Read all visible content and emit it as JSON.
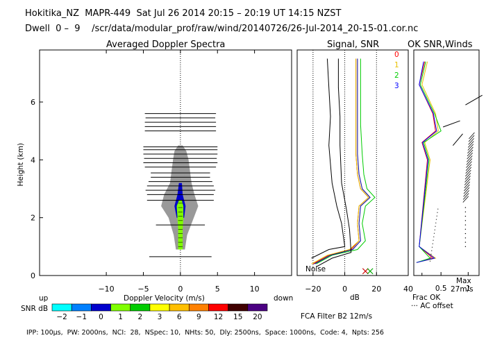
{
  "header": {
    "line1": "Hokitika_NZ  MAPR-449  Sat Jul 26 2014 20:15 – 20:19 UT 14:15 NZST",
    "line2": "Dwell  0 –  9    /scr/data/modular_prof/raw/wind/20140726/26-Jul-2014_20-15-01.cor.nc"
  },
  "footer": {
    "params": "IPP: 100μs,  PW: 2000ns,  NCI:  28,  NSpec: 10,  NHts: 50,  Dly: 2500ns,  Space: 1000ns,  Code: 4,  Npts: 256",
    "fca": "FCA Filter B2 12m/s"
  },
  "legend": {
    "up": "up",
    "down": "down",
    "snr_label": "SNR dB",
    "levels": [
      "−2",
      "−1",
      "0",
      "1",
      "2",
      "3",
      "6",
      "9",
      "12",
      "15",
      "20"
    ],
    "colors": [
      "#00ffff",
      "#0080ff",
      "#0000cc",
      "#7fff00",
      "#00cc00",
      "#ffff00",
      "#ffbf00",
      "#ff8000",
      "#ff0000",
      "#400000",
      "#4b0082"
    ]
  },
  "right_panel": {
    "title": "OK SNR,Winds",
    "beam_labels": [
      "0",
      "1",
      "2",
      "3"
    ],
    "beam_colors": [
      "#ff0000",
      "#e8c000",
      "#00cc00",
      "#0000ff"
    ],
    "xticks": [
      "0.5",
      "1"
    ],
    "max_label": "Max",
    "max_value": "27m/s",
    "frac_ok": "Frac OK",
    "ac_offset": "··· AC offset"
  },
  "chart_data": [
    {
      "type": "heatmap",
      "title": "Averaged Doppler Spectra",
      "xlabel": "Doppler Velocity (m/s)",
      "ylabel": "Height (km)",
      "xlim": [
        -19,
        15
      ],
      "ylim": [
        0,
        7.8
      ],
      "xticks": [
        -10,
        -5,
        0,
        5,
        10
      ],
      "yticks": [
        0,
        2,
        4,
        6
      ],
      "contours": [
        {
          "level": "-2",
          "profile": [
            [
              0.9,
              -0.6,
              0.6
            ],
            [
              1.4,
              -0.9,
              0.9
            ],
            [
              2.0,
              -1.6,
              1.8
            ],
            [
              2.4,
              -2.6,
              2.4
            ],
            [
              2.8,
              -2.2,
              1.9
            ],
            [
              3.2,
              -1.4,
              1.5
            ],
            [
              3.6,
              -1.2,
              1.3
            ],
            [
              4.0,
              -1.0,
              1.1
            ],
            [
              4.3,
              -0.8,
              0.8
            ],
            [
              4.5,
              -0.3,
              0.3
            ]
          ]
        },
        {
          "level": "-1",
          "profile": [
            [
              1.2,
              -0.3,
              0.3
            ],
            [
              2.0,
              -0.9,
              1.0
            ],
            [
              2.4,
              -1.3,
              1.1
            ],
            [
              2.8,
              -0.9,
              0.6
            ],
            [
              3.2,
              -0.6,
              0.6
            ],
            [
              3.5,
              -0.5,
              0.5
            ],
            [
              3.8,
              -0.6,
              0.4
            ],
            [
              4.0,
              -0.2,
              0.2
            ]
          ]
        },
        {
          "level": "0",
          "profile": [
            [
              2.0,
              -0.5,
              0.5
            ],
            [
              2.4,
              -0.8,
              0.7
            ],
            [
              2.8,
              -0.4,
              0.3
            ],
            [
              3.2,
              -0.2,
              0.2
            ]
          ]
        },
        {
          "level": "1",
          "profile": [
            [
              0.9,
              -0.3,
              0.3
            ],
            [
              1.6,
              -0.3,
              0.3
            ],
            [
              2.0,
              -0.4,
              0.4
            ],
            [
              2.4,
              -0.5,
              0.4
            ],
            [
              2.6,
              -0.2,
              0.2
            ]
          ]
        }
      ],
      "bars": [
        {
          "h": 0.65,
          "half_width": 4.2
        },
        {
          "h": 1.75,
          "half_width": 3.3
        },
        {
          "h": 2.6,
          "half_width": 4.5
        },
        {
          "h": 2.8,
          "half_width": 4.5
        },
        {
          "h": 2.95,
          "half_width": 4.7
        },
        {
          "h": 3.1,
          "half_width": 4.5
        },
        {
          "h": 3.25,
          "half_width": 4.3
        },
        {
          "h": 3.4,
          "half_width": 4.0
        },
        {
          "h": 3.55,
          "half_width": 4.0
        },
        {
          "h": 3.75,
          "half_width": 4.8
        },
        {
          "h": 3.9,
          "half_width": 5.0
        },
        {
          "h": 4.05,
          "half_width": 4.9
        },
        {
          "h": 4.2,
          "half_width": 5.0
        },
        {
          "h": 4.35,
          "half_width": 5.0
        },
        {
          "h": 4.45,
          "half_width": 5.0
        },
        {
          "h": 5.0,
          "half_width": 4.8
        },
        {
          "h": 5.15,
          "half_width": 4.8
        },
        {
          "h": 5.3,
          "half_width": 4.8
        },
        {
          "h": 5.45,
          "half_width": 4.7
        },
        {
          "h": 5.6,
          "half_width": 4.8
        }
      ],
      "legend_top_left": "up",
      "legend_top_right": "down"
    },
    {
      "type": "line",
      "title": "Signal, SNR",
      "xlabel": "dB",
      "xlim": [
        -30,
        40
      ],
      "ylim": [
        0,
        7.8
      ],
      "xticks": [
        -20,
        0,
        20,
        40
      ],
      "annotation": "Noise",
      "series": [
        {
          "name": "beam 0",
          "color": "#cc0000",
          "points": [
            [
              -20,
              0.4
            ],
            [
              -10,
              0.7
            ],
            [
              4,
              0.9
            ],
            [
              9,
              1.2
            ],
            [
              8,
              1.8
            ],
            [
              9,
              2.4
            ],
            [
              15,
              2.7
            ],
            [
              10,
              3.0
            ],
            [
              8,
              3.5
            ],
            [
              7,
              4.2
            ],
            [
              7,
              5.2
            ],
            [
              7,
              6.2
            ],
            [
              7,
              7.5
            ]
          ]
        },
        {
          "name": "beam 1",
          "color": "#e8c000",
          "points": [
            [
              -21,
              0.4
            ],
            [
              -11,
              0.7
            ],
            [
              3,
              0.9
            ],
            [
              9,
              1.2
            ],
            [
              8,
              1.8
            ],
            [
              9,
              2.4
            ],
            [
              15,
              2.7
            ],
            [
              10,
              3.0
            ],
            [
              8,
              3.5
            ],
            [
              7,
              4.2
            ],
            [
              7,
              5.2
            ],
            [
              7,
              6.2
            ],
            [
              7,
              7.5
            ]
          ]
        },
        {
          "name": "beam 2",
          "color": "#00cc00",
          "points": [
            [
              -18,
              0.4
            ],
            [
              -8,
              0.7
            ],
            [
              8,
              0.9
            ],
            [
              13,
              1.2
            ],
            [
              11,
              1.8
            ],
            [
              13,
              2.4
            ],
            [
              19,
              2.7
            ],
            [
              14,
              3.0
            ],
            [
              12,
              3.5
            ],
            [
              11,
              4.2
            ],
            [
              10,
              5.2
            ],
            [
              10,
              6.2
            ],
            [
              10,
              7.5
            ]
          ]
        },
        {
          "name": "beam 3",
          "color": "#000099",
          "points": [
            [
              -19,
              0.4
            ],
            [
              -9,
              0.7
            ],
            [
              5,
              0.9
            ],
            [
              10,
              1.2
            ],
            [
              9,
              1.8
            ],
            [
              10,
              2.4
            ],
            [
              16,
              2.7
            ],
            [
              11,
              3.0
            ],
            [
              9,
              3.5
            ],
            [
              8,
              4.2
            ],
            [
              8,
              5.2
            ],
            [
              8,
              6.2
            ],
            [
              8,
              7.5
            ]
          ]
        },
        {
          "name": "noise",
          "color": "#000000",
          "points": [
            [
              -21,
              0.6
            ],
            [
              -10,
              0.9
            ],
            [
              0,
              1.0
            ],
            [
              -2,
              1.8
            ],
            [
              -5,
              2.4
            ],
            [
              -8,
              3.2
            ],
            [
              -10,
              4.5
            ],
            [
              -9,
              5.5
            ],
            [
              -10,
              6.5
            ],
            [
              -11,
              7.5
            ]
          ]
        },
        {
          "name": "noise-2",
          "color": "#000000",
          "points": [
            [
              -18,
              0.3
            ],
            [
              -8,
              0.6
            ],
            [
              4,
              0.8
            ],
            [
              3,
              1.6
            ],
            [
              1,
              2.3
            ],
            [
              -2,
              3.2
            ],
            [
              -3,
              4.5
            ],
            [
              -3,
              5.5
            ],
            [
              -4,
              6.5
            ],
            [
              -4,
              7.5
            ]
          ]
        }
      ],
      "markers": [
        {
          "x": 13,
          "y": 0.15,
          "color": "#cc0000"
        },
        {
          "x": 16,
          "y": 0.15,
          "color": "#00aa00"
        }
      ]
    },
    {
      "type": "line",
      "title": "OK SNR,Winds",
      "xlim": [
        0,
        1.2
      ],
      "ylim": [
        0,
        7.8
      ],
      "series": [
        {
          "name": "beam 0",
          "color": "#ff0000",
          "points": [
            [
              0.05,
              0.45
            ],
            [
              0.35,
              0.6
            ],
            [
              0.1,
              1.0
            ],
            [
              0.25,
              4.0
            ],
            [
              0.15,
              4.6
            ],
            [
              0.4,
              5.0
            ],
            [
              0.35,
              5.6
            ],
            [
              0.1,
              6.6
            ],
            [
              0.2,
              7.4
            ]
          ]
        },
        {
          "name": "beam 1",
          "color": "#e8c000",
          "points": [
            [
              0.05,
              0.45
            ],
            [
              0.4,
              0.6
            ],
            [
              0.1,
              1.0
            ],
            [
              0.3,
              4.0
            ],
            [
              0.2,
              4.6
            ],
            [
              0.45,
              5.0
            ],
            [
              0.4,
              5.6
            ],
            [
              0.15,
              6.6
            ],
            [
              0.25,
              7.4
            ]
          ]
        },
        {
          "name": "beam 2",
          "color": "#00cc00",
          "points": [
            [
              0.05,
              0.45
            ],
            [
              0.3,
              0.6
            ],
            [
              0.1,
              1.0
            ],
            [
              0.28,
              4.0
            ],
            [
              0.18,
              4.6
            ],
            [
              0.5,
              5.0
            ],
            [
              0.38,
              5.6
            ],
            [
              0.12,
              6.6
            ],
            [
              0.22,
              7.4
            ]
          ]
        },
        {
          "name": "beam 3",
          "color": "#0000ff",
          "points": [
            [
              0.05,
              0.45
            ],
            [
              0.38,
              0.6
            ],
            [
              0.1,
              1.0
            ],
            [
              0.26,
              4.0
            ],
            [
              0.16,
              4.6
            ],
            [
              0.42,
              5.0
            ],
            [
              0.36,
              5.6
            ],
            [
              0.1,
              6.6
            ],
            [
              0.18,
              7.4
            ]
          ]
        }
      ]
    }
  ]
}
